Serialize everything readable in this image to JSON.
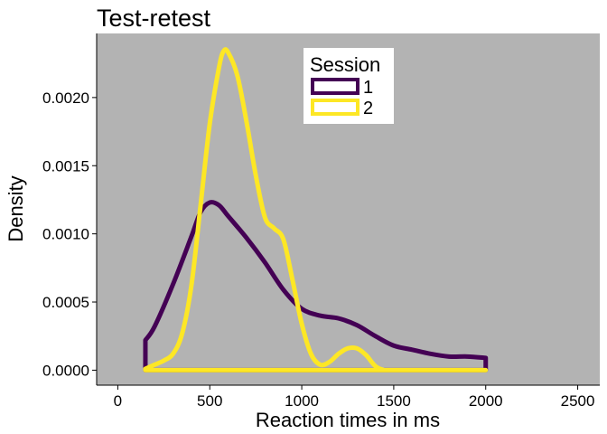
{
  "chart_data": {
    "type": "area",
    "title": "Test-retest",
    "xlabel": "Reaction times in ms",
    "ylabel": "Density",
    "xlim": [
      -115,
      2620
    ],
    "ylim": [
      -0.00011,
      0.00247
    ],
    "xticks": [
      0,
      500,
      1000,
      1500,
      2000,
      2500
    ],
    "xtick_labels": [
      "0",
      "500",
      "1000",
      "1500",
      "2000",
      "2500"
    ],
    "yticks": [
      0.0,
      0.0005,
      0.001,
      0.0015,
      0.002
    ],
    "ytick_labels": [
      "0.0000",
      "0.0005",
      "0.0010",
      "0.0015",
      "0.0020"
    ],
    "panel_background": "#b3b3b3",
    "grid": false,
    "legend": {
      "title": "Session",
      "placement": "top-center-inside"
    },
    "series": [
      {
        "name": "1",
        "color": "#440154",
        "x": [
          150,
          200,
          300,
          400,
          450,
          500,
          550,
          600,
          700,
          800,
          900,
          1000,
          1100,
          1200,
          1300,
          1400,
          1500,
          1600,
          1700,
          1800,
          1900,
          2000
        ],
        "y": [
          0.00022,
          0.00032,
          0.00063,
          0.00098,
          0.00116,
          0.00123,
          0.00121,
          0.00113,
          0.00097,
          0.00079,
          0.00059,
          0.00045,
          0.0004,
          0.00038,
          0.00033,
          0.00025,
          0.00018,
          0.00015,
          0.00012,
          0.0001,
          0.0001,
          9e-05
        ]
      },
      {
        "name": "2",
        "color": "#fde725",
        "x": [
          150,
          200,
          250,
          300,
          350,
          400,
          450,
          500,
          550,
          575,
          600,
          650,
          700,
          750,
          800,
          850,
          900,
          950,
          1000,
          1050,
          1100,
          1150,
          1200,
          1250,
          1300,
          1350,
          1400,
          1450,
          1500,
          2000
        ],
        "y": [
          1e-05,
          4e-05,
          7e-05,
          0.00012,
          0.00027,
          0.00062,
          0.00121,
          0.00181,
          0.00222,
          0.00234,
          0.00233,
          0.00216,
          0.00182,
          0.00143,
          0.00112,
          0.00104,
          0.00096,
          0.00066,
          0.00034,
          0.00012,
          4e-05,
          6e-05,
          0.00012,
          0.00016,
          0.00016,
          0.00011,
          3e-05,
          0.0,
          0.0,
          0.0
        ]
      }
    ]
  }
}
